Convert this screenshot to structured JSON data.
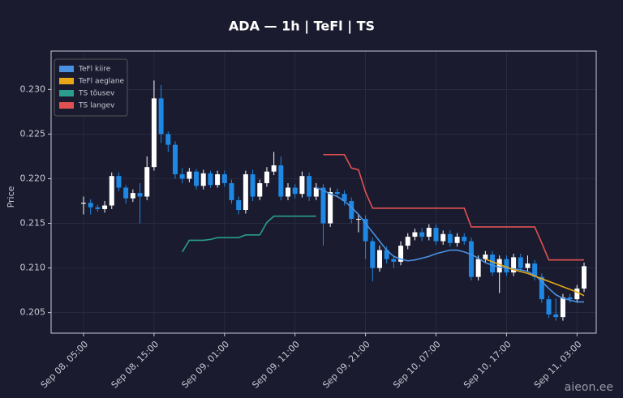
{
  "chart_data": {
    "type": "candlestick",
    "title": "ADA — 1h  |  TeFl  |  TS",
    "ylabel": "Price",
    "x": [
      "Sep 08, 05:00",
      "Sep 08, 06:00",
      "Sep 08, 07:00",
      "Sep 08, 08:00",
      "Sep 08, 09:00",
      "Sep 08, 10:00",
      "Sep 08, 11:00",
      "Sep 08, 12:00",
      "Sep 08, 13:00",
      "Sep 08, 14:00",
      "Sep 08, 15:00",
      "Sep 08, 16:00",
      "Sep 08, 17:00",
      "Sep 08, 18:00",
      "Sep 08, 19:00",
      "Sep 08, 20:00",
      "Sep 08, 21:00",
      "Sep 08, 22:00",
      "Sep 08, 23:00",
      "Sep 09, 00:00",
      "Sep 09, 01:00",
      "Sep 09, 02:00",
      "Sep 09, 03:00",
      "Sep 09, 04:00",
      "Sep 09, 05:00",
      "Sep 09, 06:00",
      "Sep 09, 07:00",
      "Sep 09, 08:00",
      "Sep 09, 09:00",
      "Sep 09, 10:00",
      "Sep 09, 11:00",
      "Sep 09, 12:00",
      "Sep 09, 13:00",
      "Sep 09, 14:00",
      "Sep 09, 15:00",
      "Sep 09, 16:00",
      "Sep 09, 17:00",
      "Sep 09, 18:00",
      "Sep 09, 19:00",
      "Sep 09, 20:00",
      "Sep 09, 21:00",
      "Sep 09, 22:00",
      "Sep 09, 23:00",
      "Sep 10, 00:00",
      "Sep 10, 01:00",
      "Sep 10, 02:00",
      "Sep 10, 03:00",
      "Sep 10, 04:00",
      "Sep 10, 05:00",
      "Sep 10, 06:00",
      "Sep 10, 07:00",
      "Sep 10, 08:00",
      "Sep 10, 09:00",
      "Sep 10, 10:00",
      "Sep 10, 11:00",
      "Sep 10, 12:00",
      "Sep 10, 13:00",
      "Sep 10, 14:00",
      "Sep 10, 15:00",
      "Sep 10, 16:00",
      "Sep 10, 17:00",
      "Sep 10, 18:00",
      "Sep 10, 19:00",
      "Sep 10, 20:00",
      "Sep 10, 21:00",
      "Sep 10, 22:00",
      "Sep 10, 23:00",
      "Sep 11, 00:00",
      "Sep 11, 01:00",
      "Sep 11, 02:00",
      "Sep 11, 03:00",
      "Sep 11, 04:00"
    ],
    "open": [
      0.2172,
      0.2173,
      0.2168,
      0.2166,
      0.217,
      0.2203,
      0.219,
      0.2178,
      0.2184,
      0.218,
      0.2213,
      0.229,
      0.225,
      0.2238,
      0.2205,
      0.22,
      0.2208,
      0.2192,
      0.2206,
      0.2193,
      0.2205,
      0.2195,
      0.2176,
      0.2165,
      0.2205,
      0.218,
      0.2195,
      0.2208,
      0.2215,
      0.218,
      0.219,
      0.2183,
      0.2203,
      0.218,
      0.219,
      0.215,
      0.2185,
      0.2183,
      0.2175,
      0.2155,
      0.2155,
      0.213,
      0.21,
      0.212,
      0.211,
      0.2107,
      0.2125,
      0.2135,
      0.214,
      0.2135,
      0.2145,
      0.213,
      0.2138,
      0.2128,
      0.2135,
      0.213,
      0.209,
      0.211,
      0.2115,
      0.2095,
      0.211,
      0.2095,
      0.2112,
      0.21,
      0.2105,
      0.209,
      0.2065,
      0.2048,
      0.2045,
      0.2067,
      0.2065,
      0.2077
    ],
    "high": [
      0.218,
      0.2177,
      0.2171,
      0.2175,
      0.2207,
      0.2207,
      0.2193,
      0.2188,
      0.2195,
      0.2225,
      0.231,
      0.2305,
      0.2253,
      0.2242,
      0.2212,
      0.2212,
      0.2211,
      0.221,
      0.2209,
      0.2209,
      0.2209,
      0.2199,
      0.218,
      0.2209,
      0.221,
      0.2199,
      0.2213,
      0.223,
      0.2225,
      0.2195,
      0.2194,
      0.2208,
      0.2207,
      0.2195,
      0.2194,
      0.219,
      0.2189,
      0.2187,
      0.2179,
      0.216,
      0.2159,
      0.2134,
      0.2125,
      0.2124,
      0.2114,
      0.213,
      0.2139,
      0.2144,
      0.2145,
      0.2149,
      0.2149,
      0.2142,
      0.2142,
      0.2139,
      0.2139,
      0.2134,
      0.2114,
      0.2119,
      0.2119,
      0.2114,
      0.2114,
      0.2116,
      0.2116,
      0.2114,
      0.2109,
      0.2094,
      0.2069,
      0.2066,
      0.2071,
      0.2071,
      0.2081,
      0.2106
    ],
    "low": [
      0.216,
      0.216,
      0.2163,
      0.2162,
      0.2166,
      0.2186,
      0.2172,
      0.2174,
      0.215,
      0.2176,
      0.2209,
      0.224,
      0.223,
      0.22,
      0.2195,
      0.2196,
      0.2188,
      0.2188,
      0.219,
      0.219,
      0.2191,
      0.2172,
      0.216,
      0.2161,
      0.2175,
      0.2176,
      0.2191,
      0.2204,
      0.2176,
      0.2176,
      0.2178,
      0.2179,
      0.2175,
      0.2176,
      0.2125,
      0.2146,
      0.2179,
      0.217,
      0.215,
      0.214,
      0.211,
      0.2085,
      0.2096,
      0.2105,
      0.21,
      0.2103,
      0.2121,
      0.2131,
      0.213,
      0.2131,
      0.2126,
      0.2126,
      0.2124,
      0.2124,
      0.2126,
      0.2086,
      0.2086,
      0.2106,
      0.2091,
      0.2072,
      0.2091,
      0.2091,
      0.2096,
      0.2096,
      0.2086,
      0.2061,
      0.2044,
      0.2041,
      0.2041,
      0.2061,
      0.2061,
      0.2073
    ],
    "close": [
      0.2173,
      0.2168,
      0.2166,
      0.217,
      0.2203,
      0.219,
      0.2178,
      0.2184,
      0.218,
      0.2213,
      0.229,
      0.225,
      0.2238,
      0.2205,
      0.22,
      0.2208,
      0.2192,
      0.2206,
      0.2193,
      0.2205,
      0.2195,
      0.2176,
      0.2165,
      0.2205,
      0.218,
      0.2195,
      0.2208,
      0.2215,
      0.218,
      0.219,
      0.2183,
      0.2203,
      0.218,
      0.219,
      0.215,
      0.2185,
      0.2183,
      0.2175,
      0.2155,
      0.2155,
      0.213,
      0.21,
      0.212,
      0.211,
      0.2107,
      0.2125,
      0.2135,
      0.214,
      0.2135,
      0.2145,
      0.213,
      0.2138,
      0.2128,
      0.2135,
      0.213,
      0.209,
      0.211,
      0.2115,
      0.2095,
      0.211,
      0.2095,
      0.2112,
      0.21,
      0.2105,
      0.209,
      0.2065,
      0.2048,
      0.2045,
      0.2067,
      0.2065,
      0.2077,
      0.2102
    ],
    "up_color": "#ffffff",
    "down_color": "#1e88e5",
    "series": [
      {
        "name": "TeFl kiire",
        "color": "#4a90e2",
        "values": [
          null,
          null,
          null,
          null,
          null,
          null,
          null,
          null,
          null,
          null,
          null,
          null,
          null,
          null,
          null,
          null,
          null,
          null,
          null,
          null,
          null,
          null,
          null,
          null,
          null,
          null,
          null,
          null,
          null,
          null,
          null,
          null,
          null,
          0.219,
          0.2187,
          0.2183,
          0.218,
          0.2175,
          0.2168,
          0.216,
          0.215,
          0.214,
          0.213,
          0.212,
          0.2113,
          0.211,
          0.2108,
          0.2109,
          0.2111,
          0.2113,
          0.2116,
          0.2118,
          0.212,
          0.212,
          0.2118,
          0.2115,
          0.2111,
          0.2106,
          0.2103,
          0.2101,
          0.21,
          0.2099,
          0.2098,
          0.2096,
          0.2092,
          0.2085,
          0.2077,
          0.207,
          0.2066,
          0.2064,
          0.2062,
          0.2062
        ]
      },
      {
        "name": "TeFl aeglane",
        "color": "#e6a817",
        "values": [
          null,
          null,
          null,
          null,
          null,
          null,
          null,
          null,
          null,
          null,
          null,
          null,
          null,
          null,
          null,
          null,
          null,
          null,
          null,
          null,
          null,
          null,
          null,
          null,
          null,
          null,
          null,
          null,
          null,
          null,
          null,
          null,
          null,
          null,
          null,
          null,
          null,
          null,
          null,
          null,
          null,
          null,
          null,
          null,
          null,
          null,
          null,
          null,
          null,
          null,
          null,
          null,
          null,
          null,
          null,
          null,
          null,
          0.211,
          0.2107,
          0.2104,
          0.2101,
          0.2098,
          0.2096,
          0.2094,
          0.2091,
          0.2088,
          0.2085,
          0.2082,
          0.2079,
          0.2076,
          0.2073,
          0.2069
        ]
      },
      {
        "name": "TS tõusev",
        "color": "#2a9d8f",
        "values": [
          null,
          null,
          null,
          null,
          null,
          null,
          null,
          null,
          null,
          null,
          null,
          null,
          null,
          null,
          0.2118,
          0.2131,
          0.2131,
          0.2131,
          0.2132,
          0.2134,
          0.2134,
          0.2134,
          0.2134,
          0.2137,
          0.2137,
          0.2137,
          0.2151,
          0.2158,
          0.2158,
          0.2158,
          0.2158,
          0.2158,
          0.2158,
          0.2158,
          null,
          null,
          null,
          null,
          null,
          null,
          null,
          null,
          null,
          null,
          null,
          null,
          null,
          null,
          null,
          null,
          null,
          null,
          null,
          null,
          null,
          null,
          null,
          null,
          null,
          null,
          null,
          null,
          null,
          null,
          null,
          null,
          null,
          null,
          null,
          null,
          null,
          null
        ]
      },
      {
        "name": "TS langev",
        "color": "#e05252",
        "values": [
          null,
          null,
          null,
          null,
          null,
          null,
          null,
          null,
          null,
          null,
          null,
          null,
          null,
          null,
          null,
          null,
          null,
          null,
          null,
          null,
          null,
          null,
          null,
          null,
          null,
          null,
          null,
          null,
          null,
          null,
          null,
          null,
          null,
          null,
          0.2227,
          0.2227,
          0.2227,
          0.2227,
          0.2212,
          0.221,
          0.2185,
          0.2167,
          0.2167,
          0.2167,
          0.2167,
          0.2167,
          0.2167,
          0.2167,
          0.2167,
          0.2167,
          0.2167,
          0.2167,
          0.2167,
          0.2167,
          0.2167,
          0.2146,
          0.2146,
          0.2146,
          0.2146,
          0.2146,
          0.2146,
          0.2146,
          0.2146,
          0.2146,
          0.2146,
          0.2128,
          0.2109,
          0.2109,
          0.2109,
          0.2109,
          0.2109,
          0.2109
        ]
      }
    ],
    "legend": "upper left",
    "grid": true,
    "ylim": [
      0.2027,
      0.2343
    ],
    "yticks": [
      0.205,
      {
        "value": 0.21,
        "label": "0.210"
      },
      0.215,
      {
        "value": 0.22,
        "label": "0.220"
      },
      0.225,
      {
        "value": 0.23,
        "label": "0.230"
      }
    ],
    "xticks": [
      "Sep 08, 05:00",
      "Sep 08, 15:00",
      "Sep 09, 01:00",
      "Sep 09, 11:00",
      "Sep 09, 21:00",
      "Sep 10, 07:00",
      "Sep 10, 17:00",
      "Sep 11, 03:00"
    ]
  },
  "watermark": "aieon.ee"
}
